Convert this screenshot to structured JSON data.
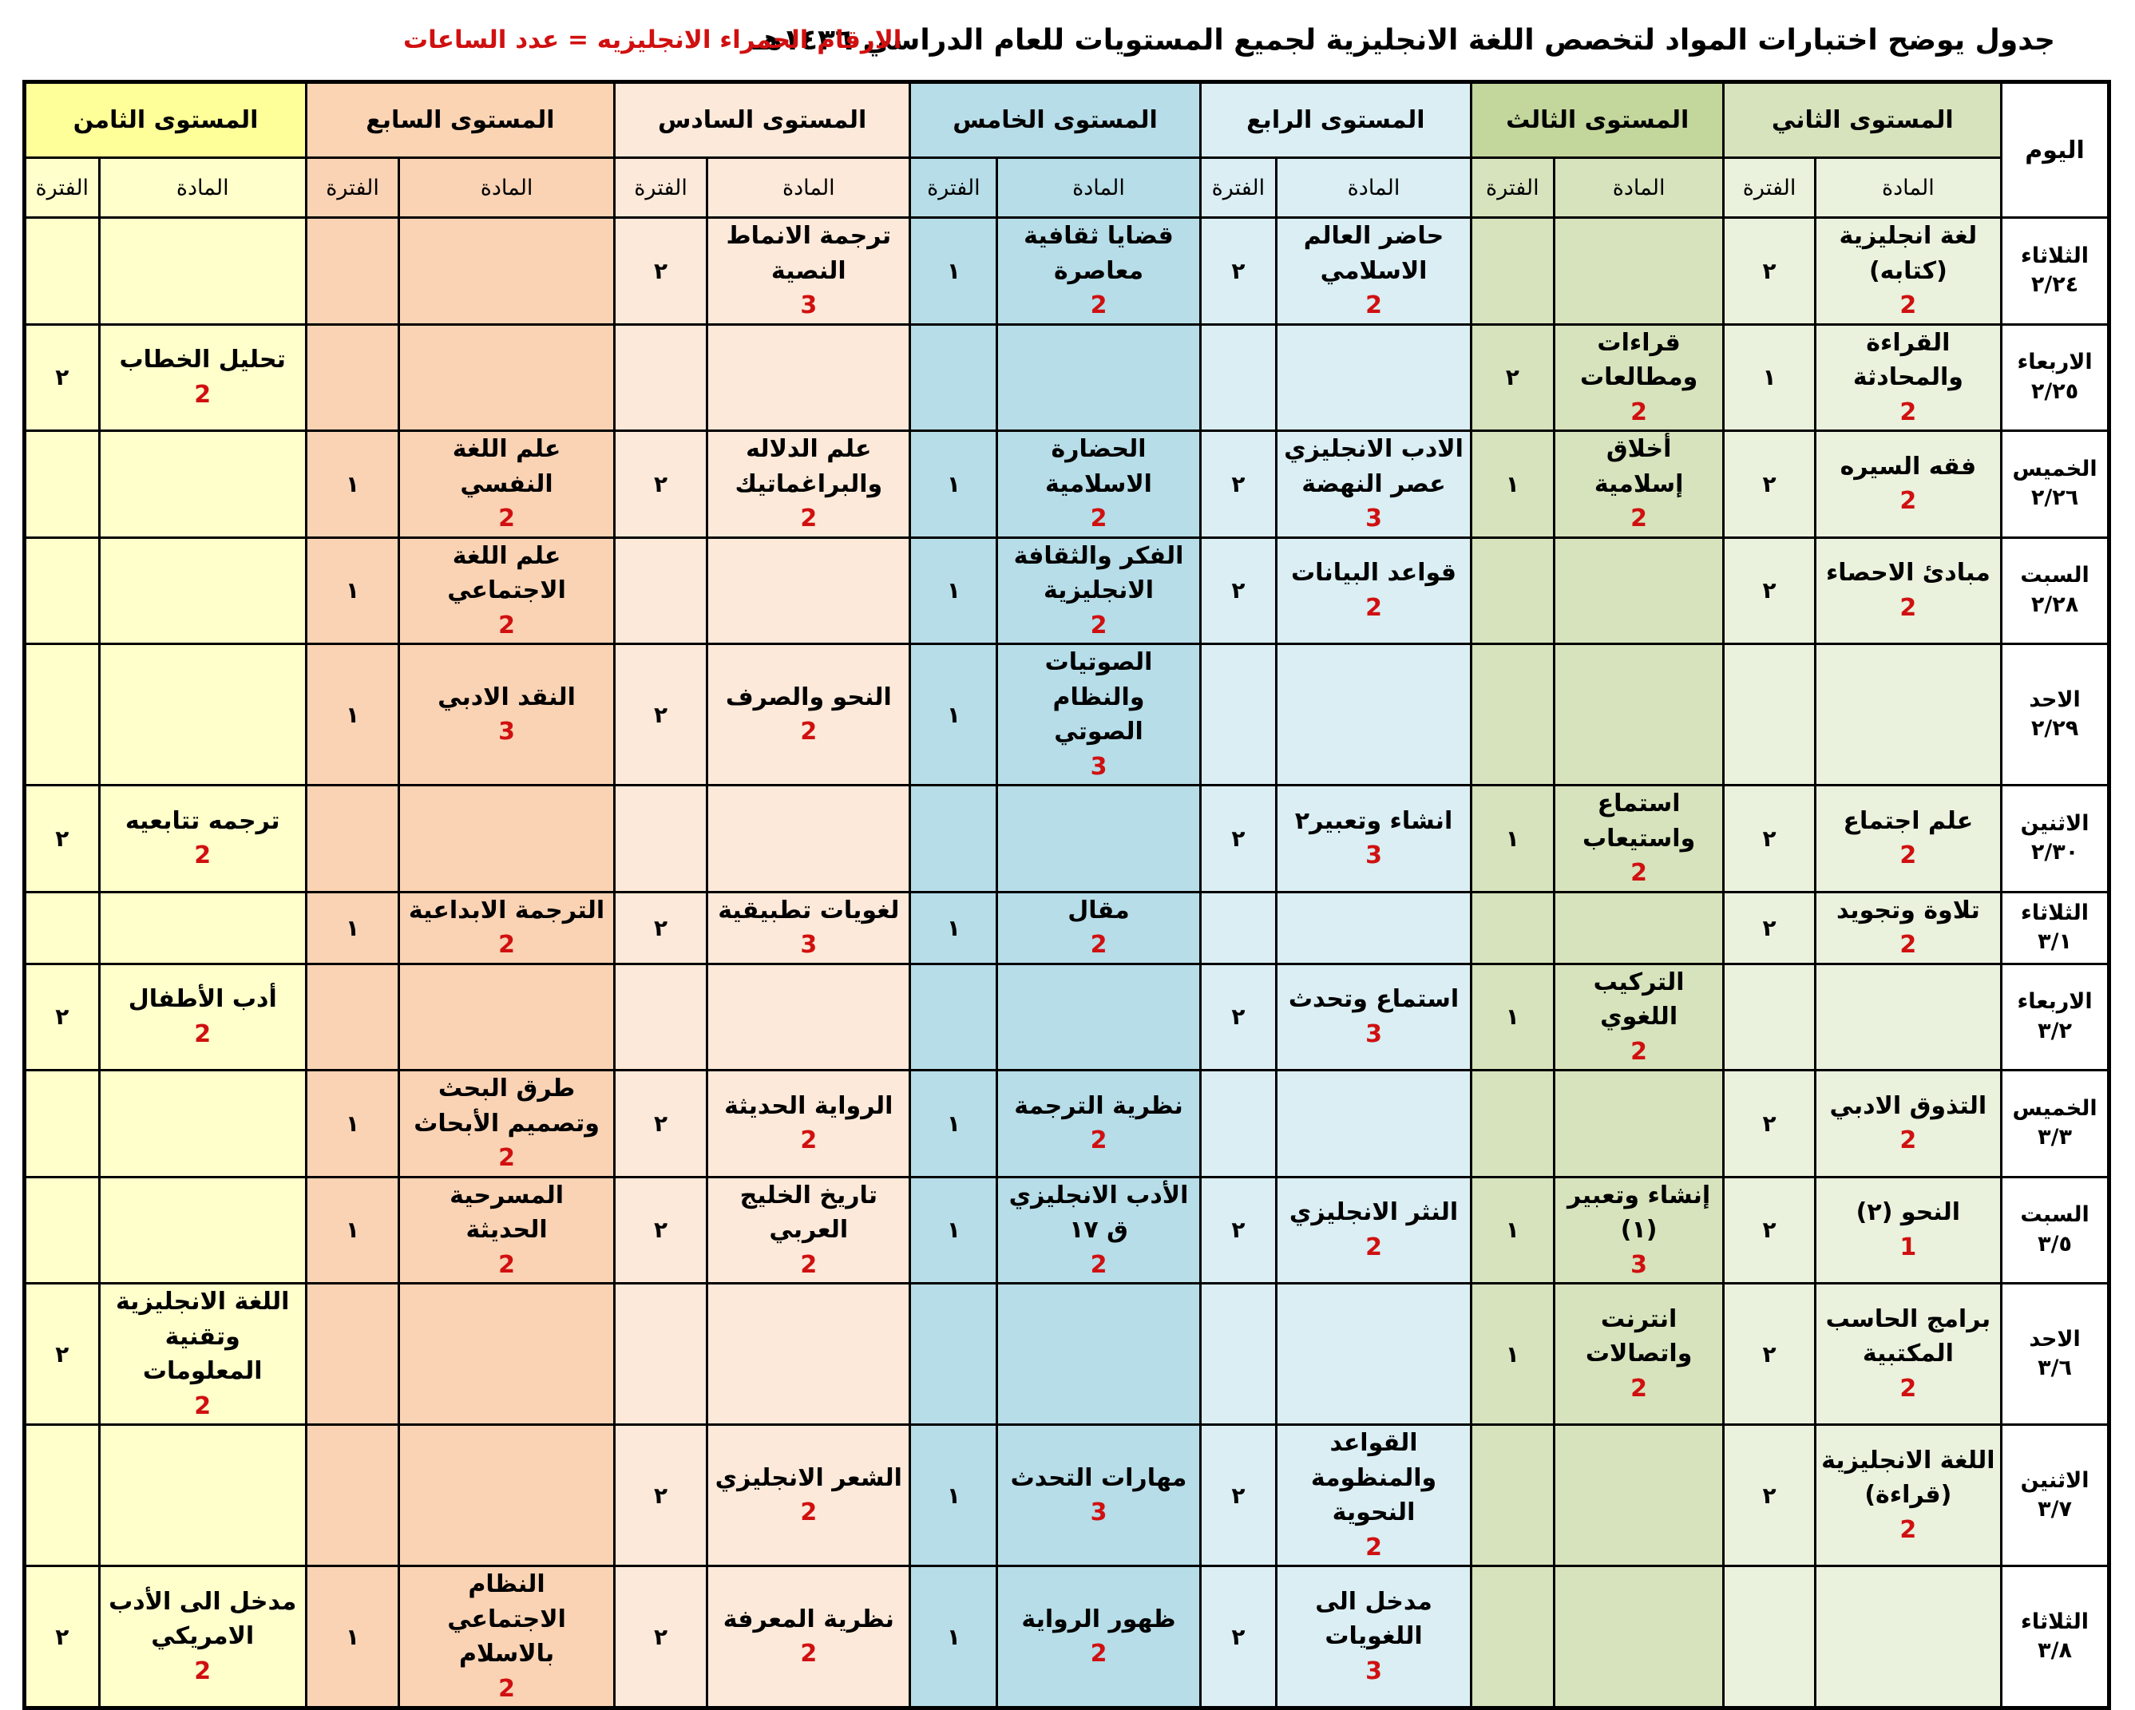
{
  "title": "جدول يوضح اختبارات المواد لتخصص اللغة الانجليزية لجميع المستويات للعام الدراسي ١٤٣٦هـ",
  "legend": "الارقام الحمراء الانجليزيه = عدد الساعات",
  "day_header": "اليوم",
  "subject_header": "المادة",
  "period_header": "الفترة",
  "colors": {
    "hours_red": "#d01010"
  },
  "levels": [
    {
      "name": "المستوى الثاني",
      "header_color": "#d7e3bd",
      "cell_color": "#eaf1dd"
    },
    {
      "name": "المستوى الثالث",
      "header_color": "#c3d69b",
      "cell_color": "#d7e3bc"
    },
    {
      "name": "المستوى الرابع",
      "header_color": "#daeef3",
      "cell_color": "#daeef3"
    },
    {
      "name": "المستوى الخامس",
      "header_color": "#b7dde8",
      "cell_color": "#b6dde8"
    },
    {
      "name": "المستوى السادس",
      "header_color": "#fde9d9",
      "cell_color": "#fde9d9"
    },
    {
      "name": "المستوى السابع",
      "header_color": "#fbd4b4",
      "cell_color": "#fad3b4"
    },
    {
      "name": "المستوى الثامن",
      "header_color": "#ffff99",
      "cell_color": "#ffffcc"
    }
  ],
  "rows": [
    {
      "day": "الثلاثاء",
      "date": "٢/٢٤",
      "cells": [
        {
          "subject": "لغة انجليزية\n(كتابه)",
          "hours": "2",
          "period": "٢"
        },
        {
          "subject": "",
          "hours": "",
          "period": ""
        },
        {
          "subject": "حاضر العالم\nالاسلامي",
          "hours": "2",
          "period": "٢"
        },
        {
          "subject": "قضايا ثقافية\nمعاصرة",
          "hours": "2",
          "period": "١"
        },
        {
          "subject": "ترجمة الانماط\nالنصية",
          "hours": "3",
          "period": "٢"
        },
        {
          "subject": "",
          "hours": "",
          "period": ""
        },
        {
          "subject": "",
          "hours": "",
          "period": ""
        }
      ]
    },
    {
      "day": "الاربعاء",
      "date": "٢/٢٥",
      "cells": [
        {
          "subject": "القراءة\nوالمحادثة",
          "hours": "2",
          "period": "١"
        },
        {
          "subject": "قراءات\nومطالعات",
          "hours": "2",
          "period": "٢"
        },
        {
          "subject": "",
          "hours": "",
          "period": ""
        },
        {
          "subject": "",
          "hours": "",
          "period": ""
        },
        {
          "subject": "",
          "hours": "",
          "period": ""
        },
        {
          "subject": "",
          "hours": "",
          "period": ""
        },
        {
          "subject": "تحليل الخطاب",
          "hours": "2",
          "period": "٢"
        }
      ]
    },
    {
      "day": "الخميس",
      "date": "٢/٢٦",
      "cells": [
        {
          "subject": "فقه السيره",
          "hours": "2",
          "period": "٢"
        },
        {
          "subject": "أخلاق إسلامية",
          "hours": "2",
          "period": "١"
        },
        {
          "subject": "الادب الانجليزي\nعصر النهضة",
          "hours": "3",
          "period": "٢"
        },
        {
          "subject": "الحضارة الاسلامية",
          "hours": "2",
          "period": "١"
        },
        {
          "subject": "علم الدلاله\nوالبراغماتيك",
          "hours": "2",
          "period": "٢"
        },
        {
          "subject": "علم اللغة النفسي",
          "hours": "2",
          "period": "١"
        },
        {
          "subject": "",
          "hours": "",
          "period": ""
        }
      ]
    },
    {
      "day": "السبت",
      "date": "٢/٢٨",
      "cells": [
        {
          "subject": "مبادئ الاحصاء",
          "hours": "2",
          "period": "٢"
        },
        {
          "subject": "",
          "hours": "",
          "period": ""
        },
        {
          "subject": "قواعد البيانات",
          "hours": "2",
          "period": "٢"
        },
        {
          "subject": "الفكر والثقافة\nالانجليزية",
          "hours": "2",
          "period": "١"
        },
        {
          "subject": "",
          "hours": "",
          "period": ""
        },
        {
          "subject": "علم اللغة\nالاجتماعي",
          "hours": "2",
          "period": "١"
        },
        {
          "subject": "",
          "hours": "",
          "period": ""
        }
      ]
    },
    {
      "day": "الاحد",
      "date": "٢/٢٩",
      "cells": [
        {
          "subject": "",
          "hours": "",
          "period": ""
        },
        {
          "subject": "",
          "hours": "",
          "period": ""
        },
        {
          "subject": "",
          "hours": "",
          "period": ""
        },
        {
          "subject": "الصوتيات والنظام\nالصوتي",
          "hours": "3",
          "period": "١"
        },
        {
          "subject": "النحو والصرف",
          "hours": "2",
          "period": "٢"
        },
        {
          "subject": "النقد الادبي",
          "hours": "3",
          "period": "١"
        },
        {
          "subject": "",
          "hours": "",
          "period": ""
        }
      ]
    },
    {
      "day": "الاثنين",
      "date": "٢/٣٠",
      "cells": [
        {
          "subject": "علم اجتماع",
          "hours": "2",
          "period": "٢"
        },
        {
          "subject": "استماع\nواستيعاب",
          "hours": "2",
          "period": "١"
        },
        {
          "subject": "انشاء وتعبير٢",
          "hours": "3",
          "period": "٢"
        },
        {
          "subject": "",
          "hours": "",
          "period": ""
        },
        {
          "subject": "",
          "hours": "",
          "period": ""
        },
        {
          "subject": "",
          "hours": "",
          "period": ""
        },
        {
          "subject": "ترجمه تتابعيه",
          "hours": "2",
          "period": "٢"
        }
      ]
    },
    {
      "day": "الثلاثاء",
      "date": "٣/١",
      "cells": [
        {
          "subject": "تلاوة وتجويد",
          "hours": "2",
          "period": "٢"
        },
        {
          "subject": "",
          "hours": "",
          "period": ""
        },
        {
          "subject": "",
          "hours": "",
          "period": ""
        },
        {
          "subject": "مقال",
          "hours": "2",
          "period": "١"
        },
        {
          "subject": "لغويات تطبيقية",
          "hours": "3",
          "period": "٢"
        },
        {
          "subject": "الترجمة الابداعية",
          "hours": "2",
          "period": "١"
        },
        {
          "subject": "",
          "hours": "",
          "period": ""
        }
      ]
    },
    {
      "day": "الاربعاء",
      "date": "٣/٢",
      "cells": [
        {
          "subject": "",
          "hours": "",
          "period": ""
        },
        {
          "subject": "التركيب اللغوي",
          "hours": "2",
          "period": "١"
        },
        {
          "subject": "استماع وتحدث",
          "hours": "3",
          "period": "٢"
        },
        {
          "subject": "",
          "hours": "",
          "period": ""
        },
        {
          "subject": "",
          "hours": "",
          "period": ""
        },
        {
          "subject": "",
          "hours": "",
          "period": ""
        },
        {
          "subject": "أدب الأطفال",
          "hours": "2",
          "period": "٢"
        }
      ]
    },
    {
      "day": "الخميس",
      "date": "٣/٣",
      "cells": [
        {
          "subject": "التذوق الادبي",
          "hours": "2",
          "period": "٢"
        },
        {
          "subject": "",
          "hours": "",
          "period": ""
        },
        {
          "subject": "",
          "hours": "",
          "period": ""
        },
        {
          "subject": "نظرية الترجمة",
          "hours": "2",
          "period": "١"
        },
        {
          "subject": "الرواية الحديثة",
          "hours": "2",
          "period": "٢"
        },
        {
          "subject": "طرق البحث\nوتصميم الأبحاث",
          "hours": "2",
          "period": "١"
        },
        {
          "subject": "",
          "hours": "",
          "period": ""
        }
      ]
    },
    {
      "day": "السبت",
      "date": "٣/٥",
      "cells": [
        {
          "subject": "النحو (٢)",
          "hours": "1",
          "period": "٢"
        },
        {
          "subject": "إنشاء وتعبير\n(١)",
          "hours": "3",
          "period": "١"
        },
        {
          "subject": "النثر الانجليزي",
          "hours": "2",
          "period": "٢"
        },
        {
          "subject": "الأدب الانجليزي\nق ١٧",
          "hours": "2",
          "period": "١"
        },
        {
          "subject": "تاريخ الخليج العربي",
          "hours": "2",
          "period": "٢"
        },
        {
          "subject": "المسرحية الحديثة",
          "hours": "2",
          "period": "١"
        },
        {
          "subject": "",
          "hours": "",
          "period": ""
        }
      ]
    },
    {
      "day": "الاحد",
      "date": "٣/٦",
      "cells": [
        {
          "subject": "برامج الحاسب\nالمكتبية",
          "hours": "2",
          "period": "٢"
        },
        {
          "subject": "انترنت\nواتصالات",
          "hours": "2",
          "period": "١"
        },
        {
          "subject": "",
          "hours": "",
          "period": ""
        },
        {
          "subject": "",
          "hours": "",
          "period": ""
        },
        {
          "subject": "",
          "hours": "",
          "period": ""
        },
        {
          "subject": "",
          "hours": "",
          "period": ""
        },
        {
          "subject": "اللغة الانجليزية\nوتقنية المعلومات",
          "hours": "2",
          "period": "٢"
        }
      ]
    },
    {
      "day": "الاثنين",
      "date": "٣/٧",
      "cells": [
        {
          "subject": "اللغة الانجليزية\n(قراءة)",
          "hours": "2",
          "period": "٢"
        },
        {
          "subject": "",
          "hours": "",
          "period": ""
        },
        {
          "subject": "القواعد والمنظومة\nالنحوية",
          "hours": "2",
          "period": "٢"
        },
        {
          "subject": "مهارات التحدث",
          "hours": "3",
          "period": "١"
        },
        {
          "subject": "الشعر الانجليزي",
          "hours": "2",
          "period": "٢"
        },
        {
          "subject": "",
          "hours": "",
          "period": ""
        },
        {
          "subject": "",
          "hours": "",
          "period": ""
        }
      ]
    },
    {
      "day": "الثلاثاء",
      "date": "٣/٨",
      "cells": [
        {
          "subject": "",
          "hours": "",
          "period": ""
        },
        {
          "subject": "",
          "hours": "",
          "period": ""
        },
        {
          "subject": "مدخل الى اللغويات",
          "hours": "3",
          "period": "٢"
        },
        {
          "subject": "ظهور الرواية",
          "hours": "2",
          "period": "١"
        },
        {
          "subject": "نظرية المعرفة",
          "hours": "2",
          "period": "٢"
        },
        {
          "subject": "النظام الاجتماعي\nبالاسلام",
          "hours": "2",
          "period": "١"
        },
        {
          "subject": "مدخل الى الأدب\nالامريكي",
          "hours": "2",
          "period": "٢"
        }
      ]
    }
  ]
}
